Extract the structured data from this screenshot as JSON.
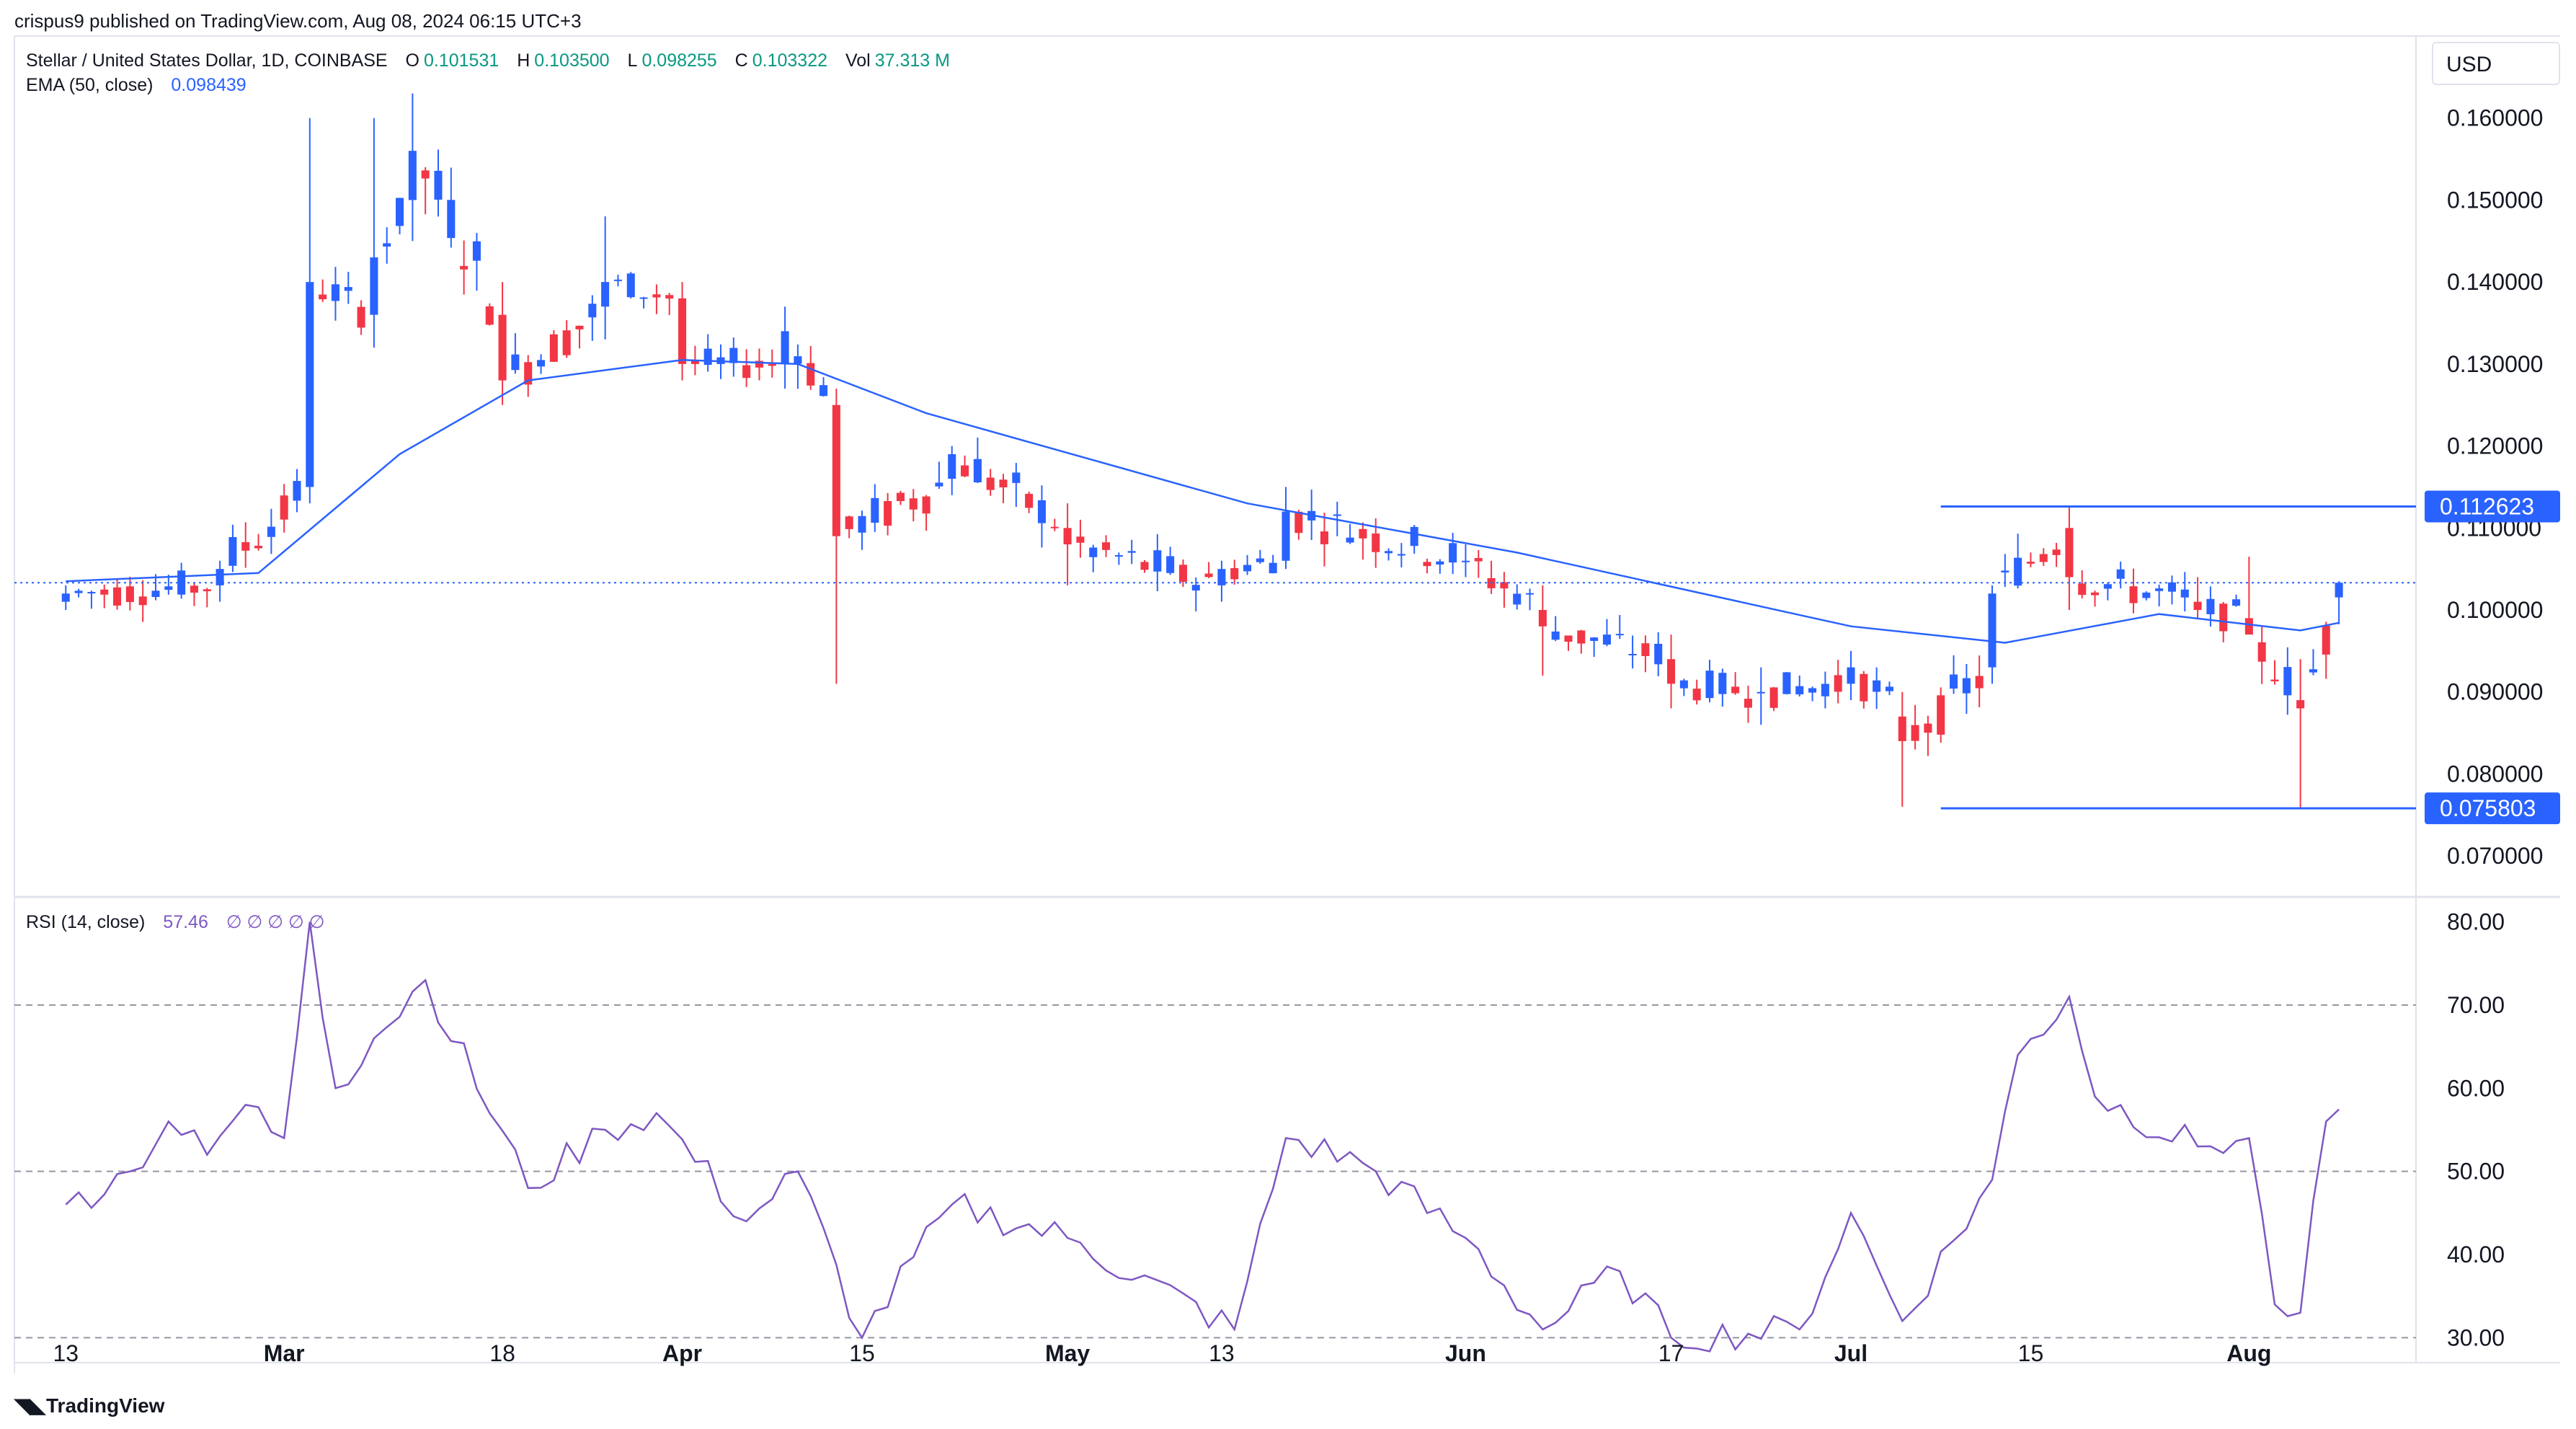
{
  "header": {
    "published_text": "crispus9 published on TradingView.com, Aug 08, 2024 06:15 UTC+3",
    "symbol_text": "Stellar / United States Dollar, 1D, COINBASE",
    "ohlc": [
      {
        "label": "O",
        "value": "0.101531"
      },
      {
        "label": "H",
        "value": "0.103500"
      },
      {
        "label": "L",
        "value": "0.098255"
      },
      {
        "label": "C",
        "value": "0.103322"
      },
      {
        "label": "Vol",
        "value": "37.313 M"
      }
    ],
    "ema_label": "EMA (50, close)",
    "ema_value": "0.098439",
    "rsi_label": "RSI (14, close)",
    "rsi_value": "57.46",
    "rsi_placeholders": [
      "∅",
      "∅",
      "∅",
      "∅",
      "∅"
    ],
    "currency": "USD"
  },
  "footer": {
    "brand": "TradingView"
  },
  "colors": {
    "up": "#2962ff",
    "down": "#f23645",
    "ema": "#2962ff",
    "rsi": "#7e57c2",
    "grid": "#e0e3eb",
    "text": "#131722"
  },
  "chart_data": [
    {
      "type": "candlestick",
      "title": "Stellar / United States Dollar, 1D, COINBASE",
      "xlabel": "",
      "ylabel": "USD",
      "ylim": [
        0.065,
        0.17
      ],
      "x_ticks": [
        "13",
        "Mar",
        "18",
        "Apr",
        "15",
        "May",
        "13",
        "Jun",
        "17",
        "Jul",
        "15",
        "Aug"
      ],
      "x_tick_dates": [
        "2024-02-13",
        "2024-03-01",
        "2024-03-18",
        "2024-04-01",
        "2024-04-15",
        "2024-05-01",
        "2024-05-13",
        "2024-06-01",
        "2024-06-17",
        "2024-07-01",
        "2024-07-15",
        "2024-08-01"
      ],
      "y_ticks": [
        "0.070000",
        "0.080000",
        "0.090000",
        "0.100000",
        "0.110000",
        "0.120000",
        "0.130000",
        "0.140000",
        "0.150000",
        "0.160000"
      ],
      "price_labels": [
        {
          "value": "0.112623",
          "price": 0.112623
        },
        {
          "value": "0.075803",
          "price": 0.075803
        }
      ],
      "horizontal_lines": [
        {
          "price": 0.112623,
          "from": "2024-07-08",
          "to": "2024-08-08"
        },
        {
          "price": 0.075803,
          "from": "2024-07-08",
          "to": "2024-08-08"
        }
      ],
      "current_price": 0.103322,
      "ohlc_anchors": [
        {
          "date": "2024-02-13",
          "o": 0.101,
          "h": 0.103,
          "l": 0.1,
          "c": 0.102
        },
        {
          "date": "2024-02-25",
          "o": 0.103,
          "h": 0.106,
          "l": 0.101,
          "c": 0.105
        },
        {
          "date": "2024-03-03",
          "o": 0.115,
          "h": 0.16,
          "l": 0.113,
          "c": 0.14
        },
        {
          "date": "2024-03-08",
          "o": 0.136,
          "h": 0.16,
          "l": 0.132,
          "c": 0.143
        },
        {
          "date": "2024-03-11",
          "o": 0.15,
          "h": 0.163,
          "l": 0.145,
          "c": 0.156
        },
        {
          "date": "2024-03-18",
          "o": 0.136,
          "h": 0.14,
          "l": 0.125,
          "c": 0.128
        },
        {
          "date": "2024-03-26",
          "o": 0.137,
          "h": 0.148,
          "l": 0.133,
          "c": 0.14
        },
        {
          "date": "2024-04-01",
          "o": 0.138,
          "h": 0.14,
          "l": 0.128,
          "c": 0.13
        },
        {
          "date": "2024-04-09",
          "o": 0.13,
          "h": 0.137,
          "l": 0.127,
          "c": 0.134
        },
        {
          "date": "2024-04-13",
          "o": 0.125,
          "h": 0.127,
          "l": 0.091,
          "c": 0.109
        },
        {
          "date": "2024-04-22",
          "o": 0.116,
          "h": 0.12,
          "l": 0.114,
          "c": 0.119
        },
        {
          "date": "2024-05-01",
          "o": 0.11,
          "h": 0.113,
          "l": 0.103,
          "c": 0.108
        },
        {
          "date": "2024-05-13",
          "o": 0.103,
          "h": 0.106,
          "l": 0.101,
          "c": 0.105
        },
        {
          "date": "2024-05-18",
          "o": 0.106,
          "h": 0.115,
          "l": 0.105,
          "c": 0.112
        },
        {
          "date": "2024-06-01",
          "o": 0.106,
          "h": 0.108,
          "l": 0.104,
          "c": 0.106
        },
        {
          "date": "2024-06-07",
          "o": 0.1,
          "h": 0.103,
          "l": 0.092,
          "c": 0.098
        },
        {
          "date": "2024-06-17",
          "o": 0.094,
          "h": 0.097,
          "l": 0.088,
          "c": 0.091
        },
        {
          "date": "2024-06-24",
          "o": 0.09,
          "h": 0.093,
          "l": 0.086,
          "c": 0.09
        },
        {
          "date": "2024-07-01",
          "o": 0.091,
          "h": 0.095,
          "l": 0.089,
          "c": 0.093
        },
        {
          "date": "2024-07-05",
          "o": 0.087,
          "h": 0.09,
          "l": 0.076,
          "c": 0.084
        },
        {
          "date": "2024-07-12",
          "o": 0.093,
          "h": 0.103,
          "l": 0.091,
          "c": 0.102
        },
        {
          "date": "2024-07-18",
          "o": 0.11,
          "h": 0.1126,
          "l": 0.1,
          "c": 0.104
        },
        {
          "date": "2024-07-28",
          "o": 0.101,
          "h": 0.104,
          "l": 0.099,
          "c": 0.1
        },
        {
          "date": "2024-08-01",
          "o": 0.099,
          "h": 0.1065,
          "l": 0.097,
          "c": 0.097
        },
        {
          "date": "2024-08-05",
          "o": 0.089,
          "h": 0.094,
          "l": 0.0758,
          "c": 0.088
        },
        {
          "date": "2024-08-08",
          "o": 0.101531,
          "h": 0.1035,
          "l": 0.098255,
          "c": 0.103322
        }
      ],
      "ema50_anchors": [
        {
          "date": "2024-02-13",
          "v": 0.1035
        },
        {
          "date": "2024-02-28",
          "v": 0.1045
        },
        {
          "date": "2024-03-10",
          "v": 0.119
        },
        {
          "date": "2024-03-20",
          "v": 0.128
        },
        {
          "date": "2024-04-01",
          "v": 0.1305
        },
        {
          "date": "2024-04-10",
          "v": 0.13
        },
        {
          "date": "2024-04-20",
          "v": 0.124
        },
        {
          "date": "2024-05-15",
          "v": 0.113
        },
        {
          "date": "2024-06-05",
          "v": 0.107
        },
        {
          "date": "2024-07-01",
          "v": 0.098
        },
        {
          "date": "2024-07-13",
          "v": 0.096
        },
        {
          "date": "2024-07-25",
          "v": 0.0995
        },
        {
          "date": "2024-08-05",
          "v": 0.0975
        },
        {
          "date": "2024-08-08",
          "v": 0.098439
        }
      ],
      "grid": false,
      "legend": "top-left"
    },
    {
      "type": "line",
      "title": "RSI (14, close)",
      "xlabel": "",
      "ylabel": "",
      "ylim": [
        27,
        83
      ],
      "y_ticks": [
        "30.00",
        "40.00",
        "50.00",
        "60.00",
        "70.00",
        "80.00"
      ],
      "reference_lines": [
        70,
        50,
        30
      ],
      "series": [
        {
          "values": [
            {
              "date": "2024-02-13",
              "v": 46
            },
            {
              "date": "2024-02-18",
              "v": 50
            },
            {
              "date": "2024-02-21",
              "v": 56
            },
            {
              "date": "2024-02-24",
              "v": 52
            },
            {
              "date": "2024-02-27",
              "v": 58
            },
            {
              "date": "2024-03-01",
              "v": 54
            },
            {
              "date": "2024-03-03",
              "v": 80
            },
            {
              "date": "2024-03-05",
              "v": 60
            },
            {
              "date": "2024-03-08",
              "v": 66
            },
            {
              "date": "2024-03-12",
              "v": 73
            },
            {
              "date": "2024-03-20",
              "v": 48
            },
            {
              "date": "2024-03-26",
              "v": 55
            },
            {
              "date": "2024-03-30",
              "v": 57
            },
            {
              "date": "2024-04-06",
              "v": 44
            },
            {
              "date": "2024-04-10",
              "v": 50
            },
            {
              "date": "2024-04-15",
              "v": 30
            },
            {
              "date": "2024-04-22",
              "v": 46
            },
            {
              "date": "2024-05-01",
              "v": 42
            },
            {
              "date": "2024-05-14",
              "v": 31
            },
            {
              "date": "2024-05-18",
              "v": 54
            },
            {
              "date": "2024-05-24",
              "v": 51
            },
            {
              "date": "2024-06-01",
              "v": 42
            },
            {
              "date": "2024-06-07",
              "v": 31
            },
            {
              "date": "2024-06-13",
              "v": 38
            },
            {
              "date": "2024-06-17",
              "v": 30
            },
            {
              "date": "2024-06-27",
              "v": 31
            },
            {
              "date": "2024-07-01",
              "v": 45
            },
            {
              "date": "2024-07-05",
              "v": 32
            },
            {
              "date": "2024-07-12",
              "v": 49
            },
            {
              "date": "2024-07-14",
              "v": 64
            },
            {
              "date": "2024-07-18",
              "v": 71
            },
            {
              "date": "2024-07-20",
              "v": 59
            },
            {
              "date": "2024-07-28",
              "v": 53
            },
            {
              "date": "2024-08-01",
              "v": 54
            },
            {
              "date": "2024-08-03",
              "v": 34
            },
            {
              "date": "2024-08-05",
              "v": 33
            },
            {
              "date": "2024-08-07",
              "v": 56
            },
            {
              "date": "2024-08-08",
              "v": 57.46
            }
          ]
        }
      ],
      "grid": false,
      "legend": "top-left"
    }
  ]
}
